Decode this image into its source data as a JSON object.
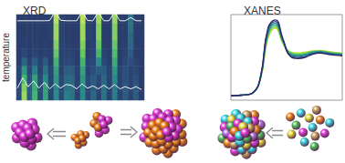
{
  "chart_data": [
    {
      "type": "heatmap",
      "title": "XRD",
      "ylabel": "temperature",
      "tick_labels": false,
      "color_range": [
        0,
        1
      ],
      "cells": [
        [
          0.2,
          0.9,
          0.3,
          0.7,
          0.2,
          0.6,
          0.15,
          0.5,
          0.2,
          0.45,
          0.4,
          0.15,
          0.5,
          0.2,
          0.35,
          0.15,
          0.4,
          0.15,
          0.45,
          0.15,
          0.3,
          0.15,
          0.3,
          0.1
        ],
        [
          0.2,
          0.85,
          0.3,
          0.65,
          0.2,
          0.6,
          0.15,
          0.5,
          0.2,
          0.4,
          0.4,
          0.15,
          0.5,
          0.2,
          0.3,
          0.15,
          0.4,
          0.15,
          0.45,
          0.15,
          0.3,
          0.15,
          0.3,
          0.1
        ],
        [
          0.15,
          0.7,
          0.25,
          0.6,
          0.2,
          0.5,
          0.15,
          0.55,
          0.2,
          0.35,
          0.35,
          0.15,
          0.55,
          0.2,
          0.3,
          0.2,
          0.35,
          0.15,
          0.5,
          0.15,
          0.25,
          0.15,
          0.25,
          0.1
        ],
        [
          0.15,
          0.55,
          0.2,
          0.45,
          0.15,
          0.4,
          0.15,
          0.6,
          0.15,
          0.3,
          0.3,
          0.15,
          0.6,
          0.15,
          0.25,
          0.3,
          0.3,
          0.15,
          0.55,
          0.15,
          0.25,
          0.15,
          0.2,
          0.1
        ],
        [
          0.1,
          0.35,
          0.15,
          0.3,
          0.15,
          0.3,
          0.1,
          0.7,
          0.15,
          0.2,
          0.2,
          0.1,
          0.7,
          0.15,
          0.2,
          0.5,
          0.2,
          0.1,
          0.65,
          0.1,
          0.2,
          0.25,
          0.15,
          0.1
        ],
        [
          0.1,
          0.2,
          0.1,
          0.15,
          0.1,
          0.15,
          0.1,
          0.8,
          0.15,
          0.15,
          0.15,
          0.1,
          0.8,
          0.1,
          0.15,
          0.7,
          0.15,
          0.1,
          0.75,
          0.1,
          0.15,
          0.3,
          0.1,
          0.1
        ],
        [
          0.1,
          0.12,
          0.1,
          0.12,
          0.1,
          0.12,
          0.1,
          0.85,
          0.15,
          0.12,
          0.1,
          0.1,
          0.85,
          0.1,
          0.12,
          0.8,
          0.12,
          0.1,
          0.8,
          0.1,
          0.12,
          0.35,
          0.1,
          0.1
        ],
        [
          0.1,
          0.1,
          0.1,
          0.1,
          0.1,
          0.1,
          0.12,
          0.9,
          0.15,
          0.1,
          0.1,
          0.1,
          0.9,
          0.12,
          0.1,
          0.85,
          0.1,
          0.1,
          0.85,
          0.1,
          0.1,
          0.35,
          0.1,
          0.1
        ],
        [
          0.1,
          0.1,
          0.1,
          0.1,
          0.1,
          0.1,
          0.12,
          0.9,
          0.15,
          0.1,
          0.1,
          0.1,
          0.9,
          0.12,
          0.1,
          0.85,
          0.1,
          0.1,
          0.85,
          0.1,
          0.1,
          0.4,
          0.1,
          0.1
        ],
        [
          0.1,
          0.1,
          0.1,
          0.1,
          0.1,
          0.1,
          0.12,
          0.95,
          0.15,
          0.1,
          0.1,
          0.1,
          0.95,
          0.12,
          0.1,
          0.9,
          0.1,
          0.1,
          0.9,
          0.1,
          0.1,
          0.4,
          0.1,
          0.1
        ]
      ]
    },
    {
      "type": "line",
      "title": "XANES",
      "tick_labels": false,
      "x": [
        0,
        1,
        2,
        3,
        4,
        5,
        6,
        7,
        8,
        9,
        10,
        11,
        12,
        13,
        14,
        15
      ],
      "xlim": [
        0,
        15
      ],
      "ylim": [
        0,
        1.6
      ],
      "series": [
        {
          "color": "#b5de2b",
          "values": [
            0.08,
            0.09,
            0.1,
            0.14,
            0.4,
            1.16,
            1.35,
            1.06,
            0.9,
            0.88,
            0.9,
            0.92,
            0.93,
            0.91,
            0.89,
            0.88
          ]
        },
        {
          "color": "#6ece58",
          "values": [
            0.08,
            0.09,
            0.1,
            0.14,
            0.41,
            1.2,
            1.38,
            1.08,
            0.89,
            0.86,
            0.88,
            0.91,
            0.92,
            0.9,
            0.88,
            0.87
          ]
        },
        {
          "color": "#1f9e89",
          "values": [
            0.08,
            0.09,
            0.1,
            0.14,
            0.42,
            1.24,
            1.41,
            1.1,
            0.87,
            0.84,
            0.86,
            0.9,
            0.91,
            0.89,
            0.87,
            0.86
          ]
        },
        {
          "color": "#26828e",
          "values": [
            0.08,
            0.09,
            0.1,
            0.14,
            0.43,
            1.28,
            1.44,
            1.12,
            0.85,
            0.82,
            0.84,
            0.88,
            0.9,
            0.88,
            0.86,
            0.85
          ]
        },
        {
          "color": "#3b5a8e",
          "values": [
            0.08,
            0.09,
            0.1,
            0.14,
            0.44,
            1.32,
            1.47,
            1.13,
            0.83,
            0.8,
            0.82,
            0.87,
            0.89,
            0.87,
            0.85,
            0.84
          ]
        },
        {
          "color": "#2d2a66",
          "values": [
            0.08,
            0.09,
            0.1,
            0.14,
            0.45,
            1.35,
            1.5,
            1.15,
            0.82,
            0.78,
            0.8,
            0.86,
            0.88,
            0.86,
            0.84,
            0.83
          ]
        }
      ]
    }
  ]
}
